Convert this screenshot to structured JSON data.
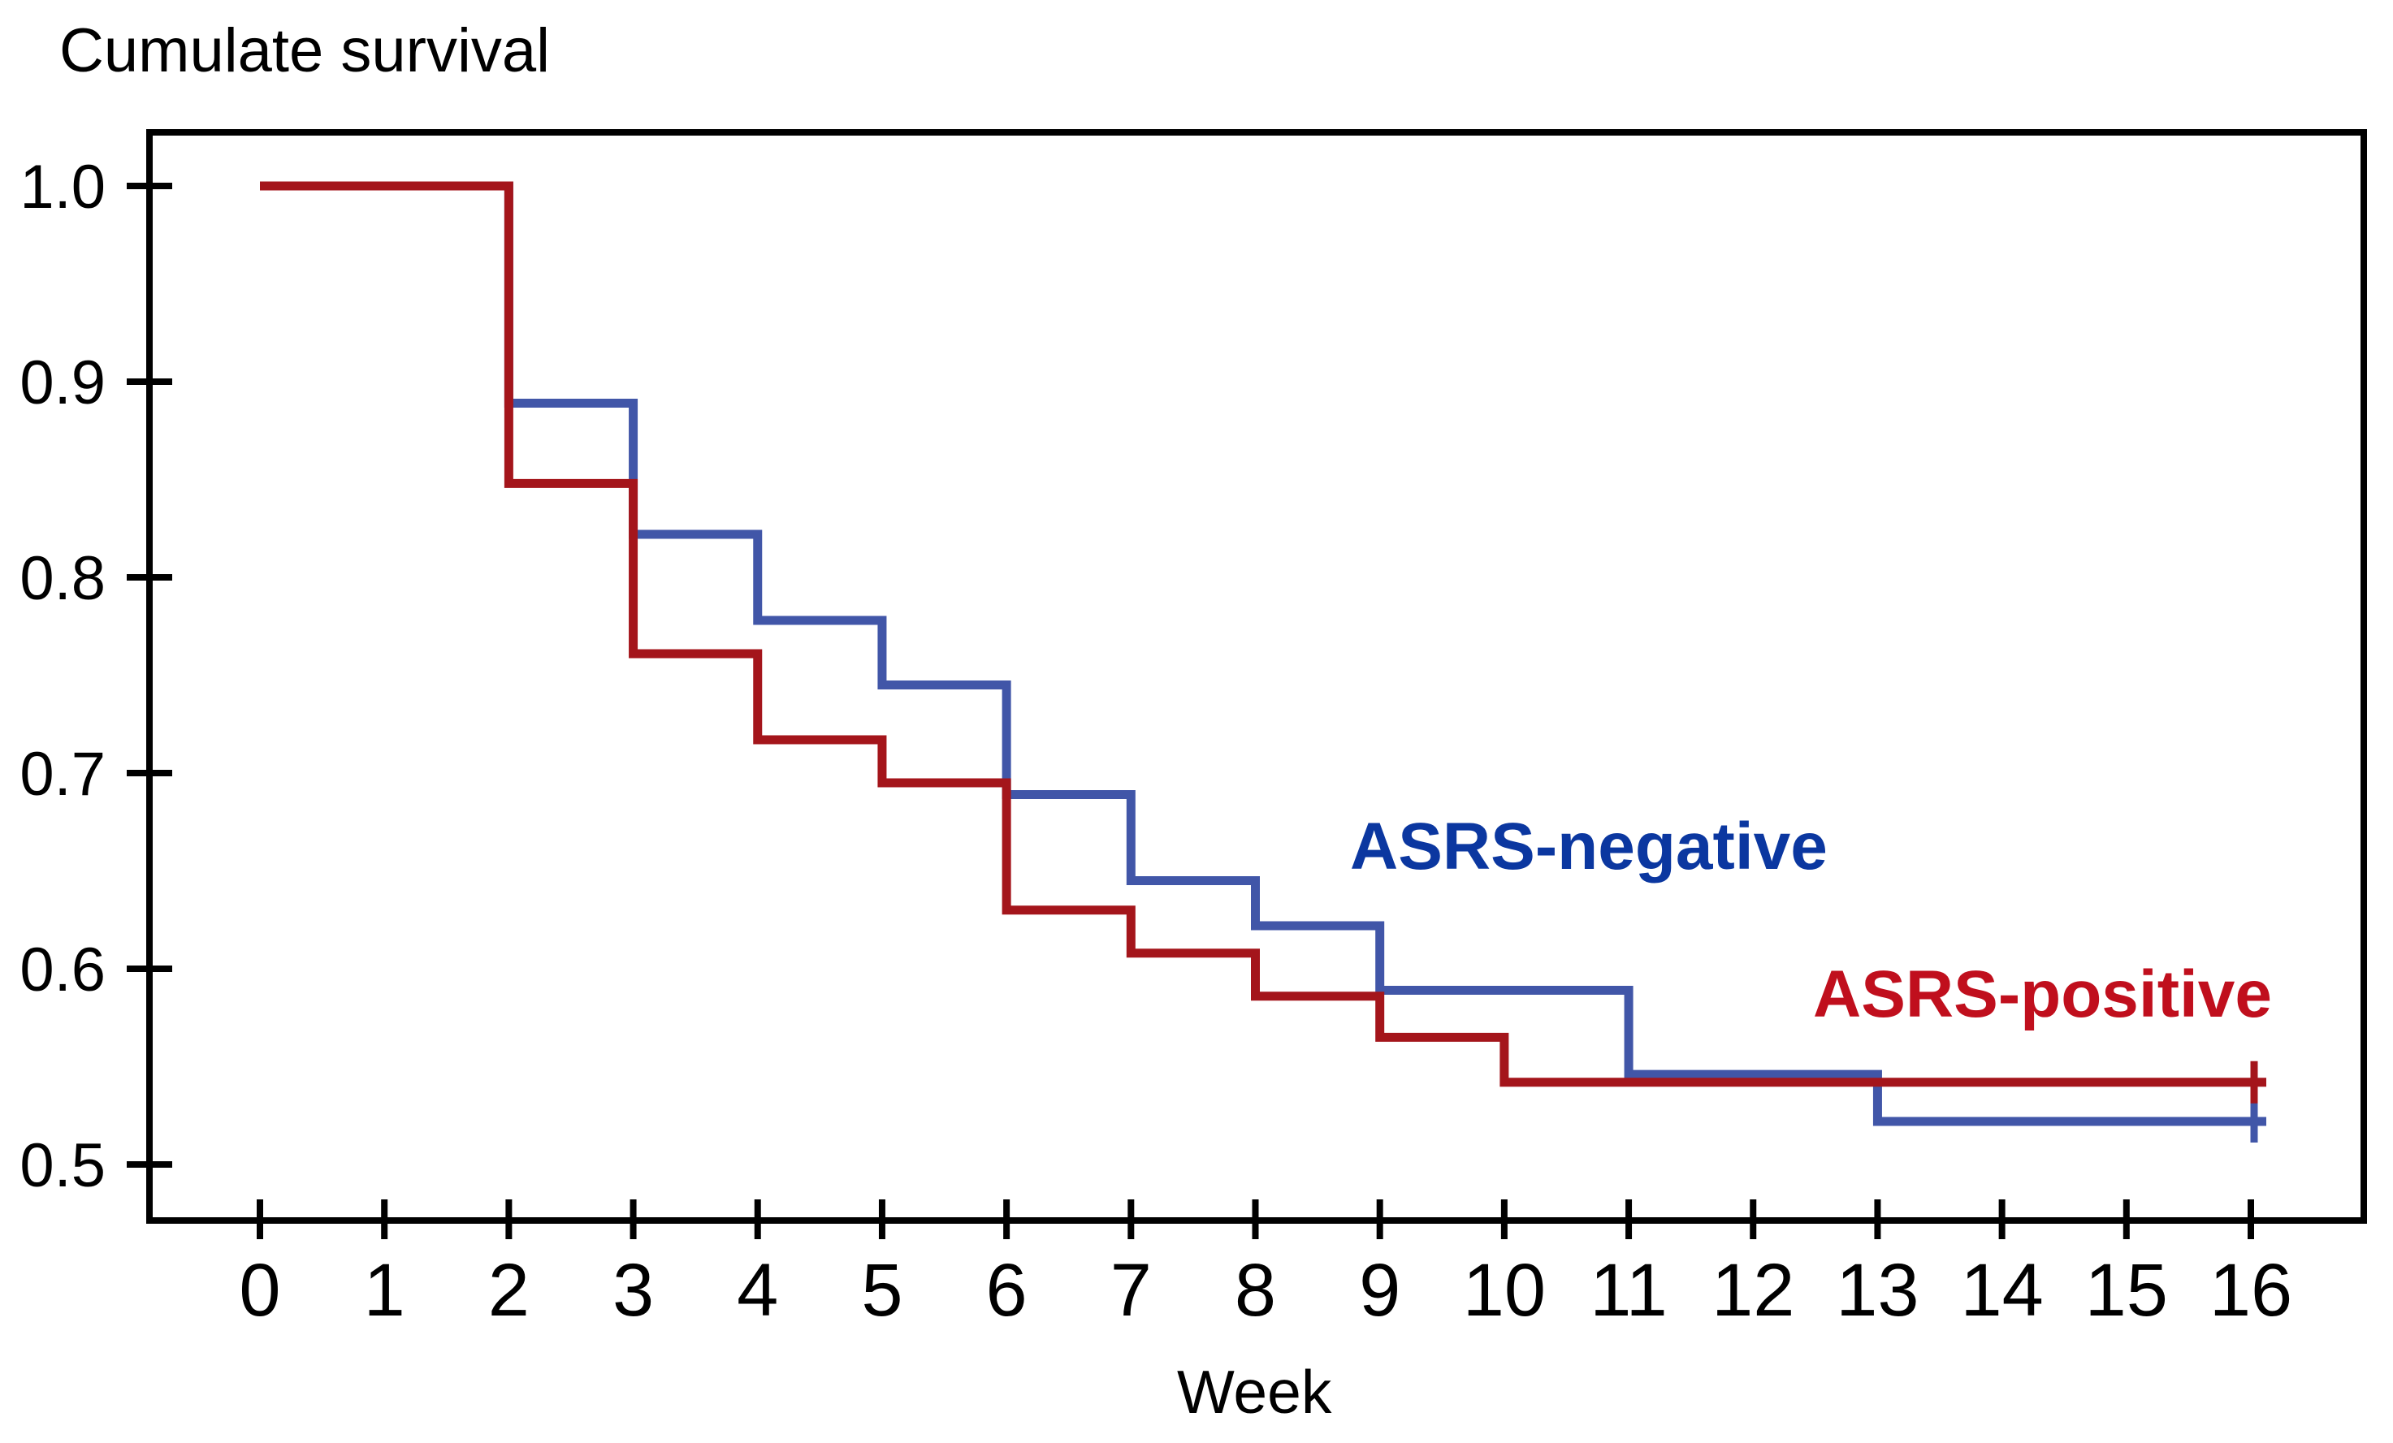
{
  "title": "Cumulate survival",
  "x_axis_label": "Week",
  "series_labels": {
    "negative": "ASRS-negative",
    "positive": "ASRS-positive"
  },
  "colors": {
    "background": "#FFFFFF",
    "axis": "#000000",
    "negative_line": "#4156A8",
    "positive_line": "#A4151B",
    "negative_label_text": "#0B37A0",
    "positive_label_text": "#C00F1D"
  },
  "chart_data": {
    "type": "line",
    "subtype": "kaplan_meier_step",
    "title": "Cumulate survival",
    "xlabel": "Week",
    "ylabel": "Cumulate survival",
    "xlim": [
      0,
      16
    ],
    "ylim": [
      0.47,
      1.03
    ],
    "x_ticks": [
      0,
      1,
      2,
      3,
      4,
      5,
      6,
      7,
      8,
      9,
      10,
      11,
      12,
      13,
      14,
      15,
      16
    ],
    "y_ticks": [
      1.0,
      0.9,
      0.8,
      0.7,
      0.6,
      0.5
    ],
    "grid": false,
    "legend_position": "inline-text-annotations",
    "series": [
      {
        "name": "ASRS-negative",
        "color": "#4156A8",
        "end_week": 16,
        "censored_at_end": true,
        "steps": [
          {
            "week": 0,
            "survival": 1.0
          },
          {
            "week": 2,
            "survival": 0.889
          },
          {
            "week": 3,
            "survival": 0.822
          },
          {
            "week": 4,
            "survival": 0.778
          },
          {
            "week": 5,
            "survival": 0.745
          },
          {
            "week": 6,
            "survival": 0.689
          },
          {
            "week": 7,
            "survival": 0.645
          },
          {
            "week": 8,
            "survival": 0.622
          },
          {
            "week": 9,
            "survival": 0.589
          },
          {
            "week": 11,
            "survival": 0.546
          },
          {
            "week": 13,
            "survival": 0.522
          }
        ]
      },
      {
        "name": "ASRS-positive",
        "color": "#A4151B",
        "end_week": 16,
        "censored_at_end": true,
        "steps": [
          {
            "week": 0,
            "survival": 1.0
          },
          {
            "week": 2,
            "survival": 0.848
          },
          {
            "week": 3,
            "survival": 0.761
          },
          {
            "week": 4,
            "survival": 0.717
          },
          {
            "week": 5,
            "survival": 0.695
          },
          {
            "week": 6,
            "survival": 0.63
          },
          {
            "week": 7,
            "survival": 0.608
          },
          {
            "week": 8,
            "survival": 0.586
          },
          {
            "week": 9,
            "survival": 0.565
          },
          {
            "week": 10,
            "survival": 0.542
          }
        ]
      }
    ]
  }
}
